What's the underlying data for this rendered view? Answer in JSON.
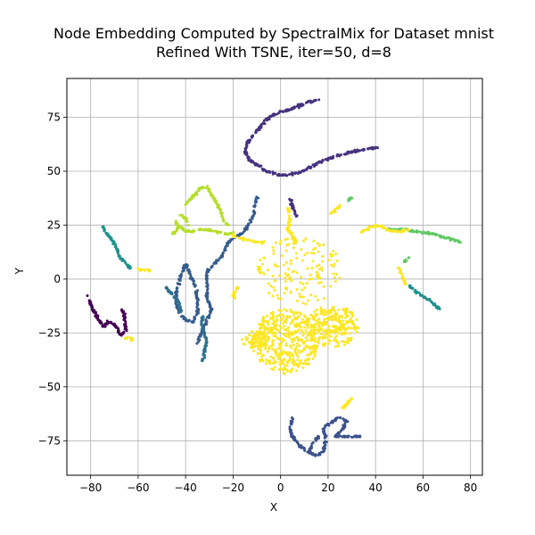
{
  "chart_data": {
    "type": "scatter",
    "title_line1": "Node Embedding Computed by SpectralMix for Dataset mnist",
    "title_line2": "Refined With TSNE, iter=50, d=8",
    "xlabel": "X",
    "ylabel": "Y",
    "xlim": [
      -90,
      85
    ],
    "ylim": [
      -91,
      93
    ],
    "grid": true,
    "x_ticks": [
      -80,
      -60,
      -40,
      -20,
      0,
      20,
      40,
      60,
      80
    ],
    "y_ticks": [
      -75,
      -50,
      -25,
      0,
      25,
      50,
      75
    ],
    "x_tick_labels": [
      "−80",
      "−60",
      "−40",
      "−20",
      "0",
      "20",
      "40",
      "60",
      "80"
    ],
    "y_tick_labels": [
      "−75",
      "−50",
      "−25",
      "0",
      "25",
      "50",
      "75"
    ],
    "series": [
      {
        "color": "#440154",
        "shape": "polyline",
        "points": [
          [
            -81,
            -8
          ],
          [
            -80,
            -12
          ],
          [
            -78,
            -16
          ],
          [
            -76,
            -20
          ],
          [
            -74,
            -22
          ],
          [
            -73,
            -20
          ],
          [
            -71,
            -20
          ],
          [
            -69,
            -23
          ],
          [
            -67,
            -26
          ],
          [
            -65,
            -24
          ],
          [
            -66,
            -16
          ],
          [
            -67,
            -14
          ]
        ]
      },
      {
        "color": "#46327e",
        "shape": "polyline",
        "points": [
          [
            10,
            81
          ],
          [
            5,
            79
          ],
          [
            -1,
            77
          ],
          [
            -5,
            75
          ],
          [
            -8,
            71
          ],
          [
            -12,
            66
          ],
          [
            -14,
            63
          ],
          [
            -15,
            59
          ],
          [
            -13,
            55
          ],
          [
            -10,
            53
          ],
          [
            -6,
            50
          ],
          [
            0,
            48
          ],
          [
            7,
            49
          ],
          [
            13,
            52
          ],
          [
            18,
            55
          ],
          [
            24,
            57
          ],
          [
            30,
            59
          ],
          [
            35,
            60
          ],
          [
            41,
            61
          ]
        ]
      },
      {
        "color": "#46327e",
        "shape": "polyline",
        "points": [
          [
            16,
            83
          ],
          [
            12,
            82
          ],
          [
            8,
            81
          ]
        ]
      },
      {
        "color": "#46327e",
        "shape": "polyline",
        "points": [
          [
            4,
            37
          ],
          [
            5,
            34
          ],
          [
            6,
            31
          ],
          [
            7,
            29
          ]
        ]
      },
      {
        "color": "#365c8d",
        "shape": "polyline",
        "points": [
          [
            -35,
            -30
          ],
          [
            -33,
            -24
          ],
          [
            -31,
            -19
          ],
          [
            -29,
            -14
          ],
          [
            -31,
            -9
          ],
          [
            -31,
            -3
          ],
          [
            -31,
            3
          ],
          [
            -29,
            6
          ],
          [
            -27,
            8
          ],
          [
            -24,
            12
          ],
          [
            -22,
            17
          ],
          [
            -20,
            19
          ],
          [
            -16,
            21
          ],
          [
            -13,
            26
          ],
          [
            -11,
            30
          ],
          [
            -11,
            34
          ],
          [
            -10,
            38
          ]
        ]
      },
      {
        "color": "#365c8d",
        "shape": "polyline",
        "points": [
          [
            -40,
            7
          ],
          [
            -42,
            2
          ],
          [
            -43,
            -3
          ],
          [
            -44,
            -8
          ],
          [
            -44,
            -12
          ],
          [
            -42,
            -16
          ],
          [
            -40,
            -19
          ],
          [
            -37,
            -20
          ],
          [
            -35,
            -16
          ],
          [
            -35,
            -10
          ],
          [
            -36,
            -4
          ],
          [
            -38,
            2
          ],
          [
            -40,
            7
          ]
        ]
      },
      {
        "color": "#2c728e",
        "shape": "polyline",
        "points": [
          [
            -33,
            -17
          ],
          [
            -33,
            -22
          ],
          [
            -32,
            -26
          ],
          [
            -31,
            -29
          ],
          [
            -32,
            -33
          ],
          [
            -33,
            -38
          ]
        ]
      },
      {
        "color": "#2c728e",
        "shape": "polyline",
        "points": [
          [
            -48,
            -4
          ],
          [
            -45,
            -8
          ],
          [
            -43,
            -10
          ],
          [
            -42,
            -15
          ]
        ]
      },
      {
        "color": "#21918c",
        "shape": "polyline",
        "points": [
          [
            -75,
            24
          ],
          [
            -73,
            21
          ],
          [
            -71,
            18
          ],
          [
            -69,
            14
          ],
          [
            -68,
            11
          ],
          [
            -66,
            8
          ],
          [
            -63,
            5
          ]
        ]
      },
      {
        "color": "#21918c",
        "shape": "polyline",
        "points": [
          [
            54,
            -3
          ],
          [
            57,
            -6
          ],
          [
            60,
            -8
          ],
          [
            63,
            -10
          ],
          [
            65,
            -12
          ],
          [
            67,
            -14
          ]
        ]
      },
      {
        "color": "#3b528b",
        "shape": "polyline",
        "points": [
          [
            5,
            -64
          ],
          [
            4,
            -69
          ],
          [
            5,
            -73
          ],
          [
            8,
            -77
          ],
          [
            11,
            -80
          ],
          [
            15,
            -82
          ],
          [
            18,
            -80
          ],
          [
            19,
            -74
          ],
          [
            18,
            -69
          ],
          [
            22,
            -66
          ],
          [
            25,
            -64
          ],
          [
            28,
            -66
          ],
          [
            26,
            -70
          ],
          [
            23,
            -73
          ],
          [
            28,
            -73
          ],
          [
            34,
            -73
          ]
        ]
      },
      {
        "color": "#3b528b",
        "shape": "polyline",
        "points": [
          [
            16,
            -73
          ],
          [
            14,
            -76
          ],
          [
            12,
            -80
          ]
        ]
      },
      {
        "color": "#5ec962",
        "shape": "polyline",
        "points": [
          [
            45,
            23
          ],
          [
            52,
            23
          ],
          [
            58,
            22
          ],
          [
            64,
            21
          ],
          [
            70,
            19
          ],
          [
            76,
            17
          ]
        ]
      },
      {
        "color": "#5ec962",
        "shape": "polyline",
        "points": [
          [
            28,
            35
          ],
          [
            29,
            37
          ],
          [
            30,
            38
          ]
        ]
      },
      {
        "color": "#5ec962",
        "shape": "polyline",
        "points": [
          [
            52,
            8
          ],
          [
            53,
            9
          ],
          [
            54,
            10
          ]
        ]
      },
      {
        "color": "#b5de2b",
        "shape": "polyline",
        "points": [
          [
            -40,
            35
          ],
          [
            -37,
            38
          ],
          [
            -34,
            42
          ],
          [
            -31,
            43
          ],
          [
            -29,
            39
          ],
          [
            -27,
            35
          ],
          [
            -25,
            31
          ],
          [
            -24,
            27
          ],
          [
            -22,
            25
          ]
        ]
      },
      {
        "color": "#b5de2b",
        "shape": "polyline",
        "points": [
          [
            -44,
            26
          ],
          [
            -42,
            24
          ],
          [
            -40,
            22
          ],
          [
            -37,
            22
          ],
          [
            -34,
            23
          ],
          [
            -31,
            23
          ],
          [
            -27,
            22
          ],
          [
            -23,
            21
          ],
          [
            -20,
            21
          ]
        ]
      },
      {
        "color": "#b5de2b",
        "shape": "polyline",
        "points": [
          [
            -46,
            21
          ],
          [
            -44,
            22
          ],
          [
            -43,
            24
          ],
          [
            -44,
            27
          ]
        ]
      },
      {
        "color": "#b5de2b",
        "shape": "polyline",
        "points": [
          [
            -42,
            30
          ],
          [
            -40,
            28
          ],
          [
            -39,
            25
          ]
        ]
      },
      {
        "color": "#fde725",
        "shape": "blob",
        "center": [
          2,
          -29
        ],
        "radius": [
          14,
          15
        ],
        "count": 420
      },
      {
        "color": "#fde725",
        "shape": "blob",
        "center": [
          22,
          -22
        ],
        "radius": [
          11,
          10
        ],
        "count": 260
      },
      {
        "color": "#fde725",
        "shape": "blob",
        "center": [
          8,
          4
        ],
        "radius": [
          18,
          16
        ],
        "count": 150
      },
      {
        "color": "#fde725",
        "shape": "blob",
        "center": [
          -11,
          -28
        ],
        "radius": [
          6,
          4
        ],
        "count": 60
      },
      {
        "color": "#fde725",
        "shape": "polyline",
        "points": [
          [
            3,
            33
          ],
          [
            4,
            27
          ],
          [
            3,
            23
          ],
          [
            5,
            20
          ],
          [
            7,
            17
          ]
        ]
      },
      {
        "color": "#fde725",
        "shape": "polyline",
        "points": [
          [
            34,
            22
          ],
          [
            38,
            24
          ],
          [
            42,
            25
          ],
          [
            45,
            23
          ],
          [
            48,
            22
          ],
          [
            51,
            22
          ],
          [
            54,
            23
          ]
        ]
      },
      {
        "color": "#fde725",
        "shape": "polyline",
        "points": [
          [
            50,
            5
          ],
          [
            51,
            2
          ],
          [
            52,
            -1
          ],
          [
            53,
            -3
          ]
        ]
      },
      {
        "color": "#fde725",
        "shape": "polyline",
        "points": [
          [
            -66,
            -28
          ],
          [
            -64,
            -27
          ],
          [
            -62,
            -29
          ]
        ]
      },
      {
        "color": "#fde725",
        "shape": "polyline",
        "points": [
          [
            -61,
            5
          ],
          [
            -58,
            4
          ],
          [
            -55,
            4
          ]
        ]
      },
      {
        "color": "#fde725",
        "shape": "polyline",
        "points": [
          [
            26,
            -60
          ],
          [
            28,
            -58
          ],
          [
            30,
            -55
          ]
        ]
      },
      {
        "color": "#fde725",
        "shape": "polyline",
        "points": [
          [
            -20,
            20
          ],
          [
            -17,
            19
          ],
          [
            -14,
            18
          ],
          [
            -10,
            17
          ],
          [
            -7,
            17
          ]
        ]
      },
      {
        "color": "#fde725",
        "shape": "polyline",
        "points": [
          [
            -18,
            -4
          ],
          [
            -20,
            -7
          ],
          [
            -19,
            -10
          ]
        ]
      },
      {
        "color": "#fde725",
        "shape": "polyline",
        "points": [
          [
            21,
            30
          ],
          [
            23,
            32
          ],
          [
            25,
            34
          ]
        ]
      }
    ]
  }
}
